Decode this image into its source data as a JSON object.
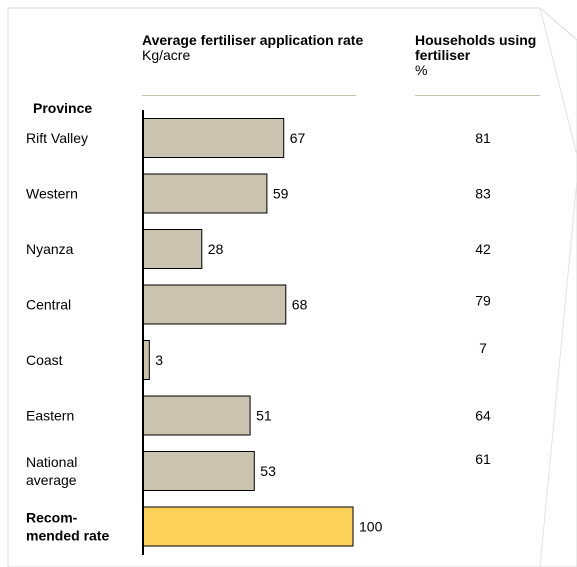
{
  "headers": {
    "province": "Province",
    "rate_title": "Average fertiliser application rate",
    "rate_unit": "Kg/acre",
    "households_title": "Households using fertiliser",
    "households_unit": "%"
  },
  "colors": {
    "bar": "#c9c3b0",
    "recommended_bar": "#fcd15a",
    "bar_stroke": "#000000",
    "rule": "#c9c2ae",
    "frame": "#d9d9d9"
  },
  "chart_data": {
    "type": "bar",
    "orientation": "horizontal",
    "categories": [
      "Rift Valley",
      "Western",
      "Nyanza",
      "Central",
      "Coast",
      "Eastern",
      "National average",
      "Recom-mended rate"
    ],
    "category_lines": [
      [
        "Rift Valley"
      ],
      [
        "Western"
      ],
      [
        "Nyanza"
      ],
      [
        "Central"
      ],
      [
        "Coast"
      ],
      [
        "Eastern"
      ],
      [
        "National",
        "average"
      ],
      [
        "Recom-",
        "mended rate"
      ]
    ],
    "bold_categories": [
      false,
      false,
      false,
      false,
      false,
      false,
      false,
      true
    ],
    "series": [
      {
        "name": "Average fertiliser application rate",
        "values": [
          67,
          59,
          28,
          68,
          3,
          51,
          53,
          100
        ]
      }
    ],
    "households_pct": [
      81,
      83,
      42,
      79,
      7,
      64,
      61,
      null
    ],
    "xlim": [
      0,
      100
    ],
    "grid": false,
    "legend": "none"
  }
}
